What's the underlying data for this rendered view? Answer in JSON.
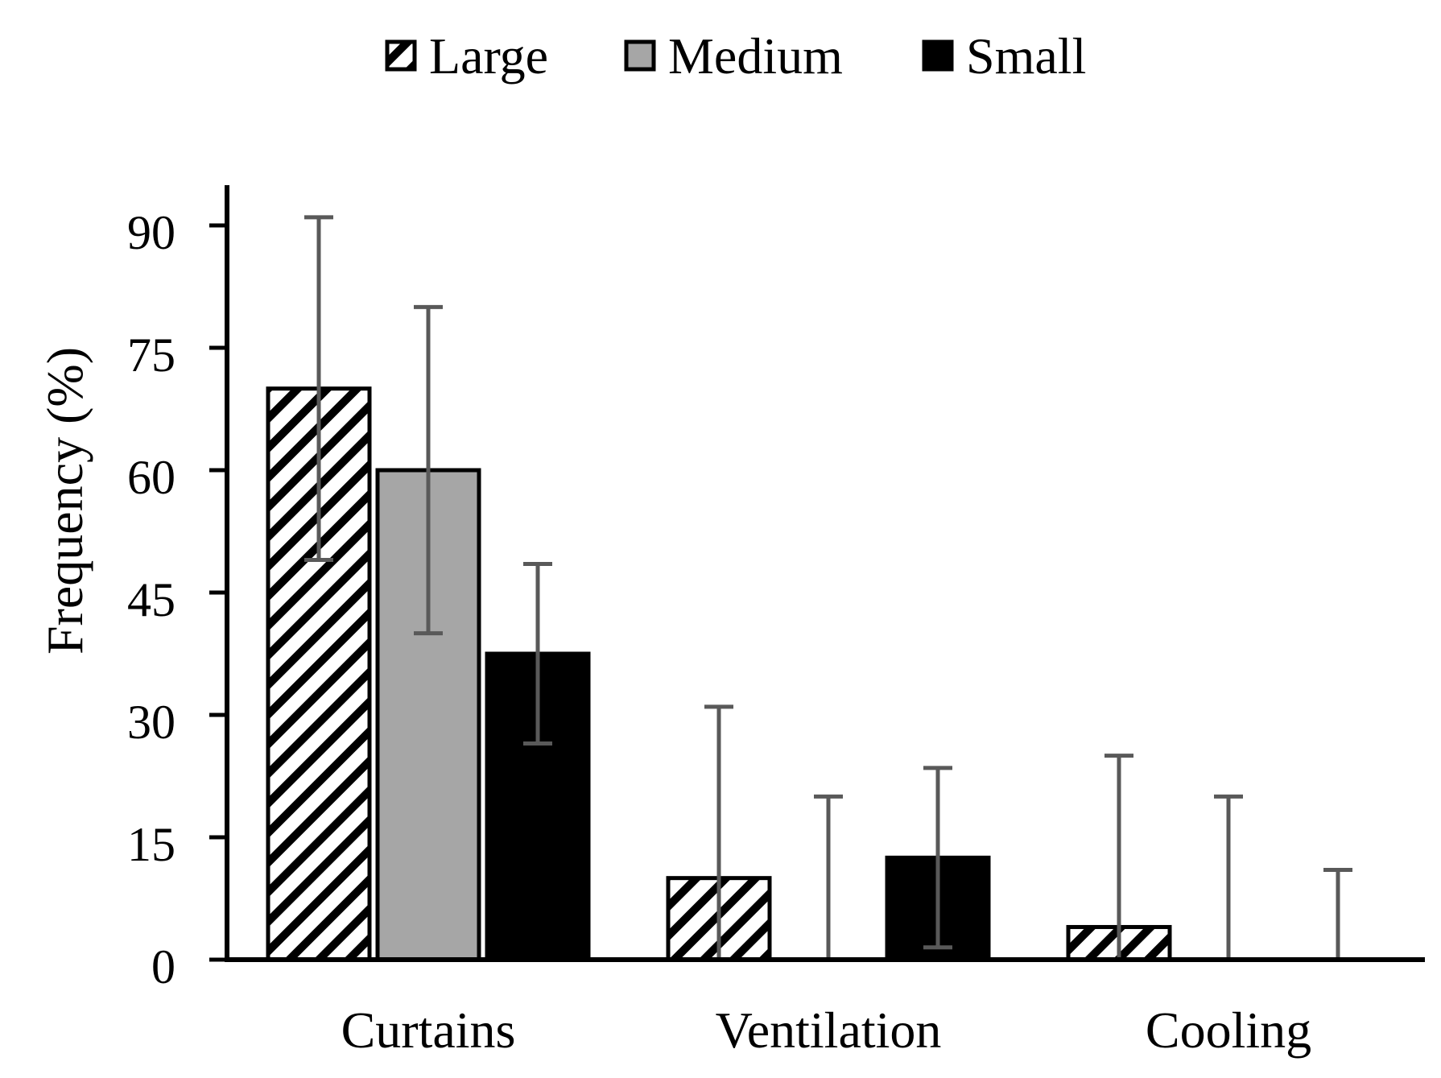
{
  "colors": {
    "large_fill": "#ffffff",
    "large_hatch": "#000000",
    "medium": "#a6a6a6",
    "small": "#000000",
    "error_bar": "#595959",
    "axis": "#000000",
    "text": "#000000"
  },
  "chart_data": {
    "type": "bar",
    "title": "",
    "xlabel": "",
    "ylabel": "Frequency (%)",
    "ylim": [
      0,
      90
    ],
    "yticks": [
      "0",
      "15",
      "30",
      "45",
      "60",
      "75",
      "90"
    ],
    "ytick_values": [
      0,
      15,
      30,
      45,
      60,
      75,
      90
    ],
    "categories": [
      "Curtains",
      "Ventilation",
      "Cooling"
    ],
    "legend_position": "top-center",
    "grid": false,
    "series": [
      {
        "name": "Large",
        "pattern": "diagonal-hatch",
        "values": [
          70,
          10,
          4
        ],
        "error_upper": [
          91,
          31,
          25
        ],
        "error_lower": [
          49,
          0,
          0
        ]
      },
      {
        "name": "Medium",
        "pattern": "solid-gray",
        "values": [
          60,
          0,
          0
        ],
        "error_upper": [
          80,
          20,
          20
        ],
        "error_lower": [
          40,
          0,
          0
        ]
      },
      {
        "name": "Small",
        "pattern": "solid-black",
        "values": [
          37.5,
          12.5,
          0
        ],
        "error_upper": [
          48.5,
          23.5,
          11
        ],
        "error_lower": [
          26.5,
          1.5,
          0
        ]
      }
    ]
  }
}
